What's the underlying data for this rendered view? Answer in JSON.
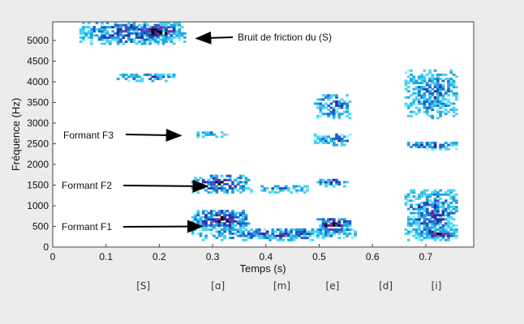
{
  "chart_data": {
    "type": "heatmap",
    "title": "",
    "xlabel": "Temps (s)",
    "ylabel": "Fréquence (Hz)",
    "xlim": [
      0,
      0.79
    ],
    "ylim": [
      0,
      5450
    ],
    "xticks": [
      "0",
      "0.1",
      "0.2",
      "0.3",
      "0.4",
      "0.5",
      "0.6",
      "0.7"
    ],
    "xtick_values": [
      0,
      0.1,
      0.2,
      0.3,
      0.4,
      0.5,
      0.6,
      0.7
    ],
    "yticks": [
      "0",
      "500",
      "1000",
      "1500",
      "2000",
      "2500",
      "3000",
      "3500",
      "4000",
      "4500",
      "5000"
    ],
    "ytick_values": [
      0,
      500,
      1000,
      1500,
      2000,
      2500,
      3000,
      3500,
      4000,
      4500,
      5000
    ],
    "grid": false,
    "colormap": [
      "#8cf0ff",
      "#46d2f0",
      "#1ea5e1",
      "#1e5fcd",
      "#2d2d9b",
      "#8c28b4",
      "#000000"
    ],
    "energy_regions": [
      {
        "t": [
          0.05,
          0.25
        ],
        "f": [
          4900,
          5450
        ],
        "level": 0.7
      },
      {
        "t": [
          0.15,
          0.24
        ],
        "f": [
          5000,
          5400
        ],
        "level": 1.0
      },
      {
        "t": [
          0.12,
          0.24
        ],
        "f": [
          4000,
          4200
        ],
        "level": 0.45
      },
      {
        "t": [
          0.27,
          0.33
        ],
        "f": [
          2650,
          2800
        ],
        "level": 0.35
      },
      {
        "t": [
          0.26,
          0.37
        ],
        "f": [
          1300,
          1750
        ],
        "level": 0.8
      },
      {
        "t": [
          0.26,
          0.37
        ],
        "f": [
          400,
          900
        ],
        "level": 0.9
      },
      {
        "t": [
          0.26,
          0.57
        ],
        "f": [
          150,
          450
        ],
        "level": 0.6
      },
      {
        "t": [
          0.37,
          0.48
        ],
        "f": [
          1300,
          1500
        ],
        "level": 0.3
      },
      {
        "t": [
          0.49,
          0.56
        ],
        "f": [
          3100,
          3700
        ],
        "level": 0.55
      },
      {
        "t": [
          0.49,
          0.56
        ],
        "f": [
          2450,
          2750
        ],
        "level": 0.7
      },
      {
        "t": [
          0.49,
          0.56
        ],
        "f": [
          1450,
          1650
        ],
        "level": 0.65
      },
      {
        "t": [
          0.49,
          0.56
        ],
        "f": [
          300,
          700
        ],
        "level": 0.9
      },
      {
        "t": [
          0.66,
          0.76
        ],
        "f": [
          3100,
          4300
        ],
        "level": 0.5
      },
      {
        "t": [
          0.66,
          0.76
        ],
        "f": [
          2350,
          2550
        ],
        "level": 0.6
      },
      {
        "t": [
          0.66,
          0.76
        ],
        "f": [
          150,
          1400
        ],
        "level": 0.6
      },
      {
        "t": [
          0.68,
          0.76
        ],
        "f": [
          200,
          400
        ],
        "level": 0.9
      }
    ],
    "annotations": [
      {
        "text": "Bruit de friction du (S)",
        "points_to": [
          0.27,
          5050
        ]
      },
      {
        "text": "Formant F3",
        "points_to": [
          0.24,
          2700
        ]
      },
      {
        "text": "Formant F2",
        "points_to": [
          0.29,
          1470
        ]
      },
      {
        "text": "Formant F1",
        "points_to": [
          0.28,
          500
        ]
      }
    ],
    "phonemes": [
      {
        "label": "[S]",
        "t": 0.17
      },
      {
        "label": "[ɑ]",
        "t": 0.31
      },
      {
        "label": "[m]",
        "t": 0.43
      },
      {
        "label": "[e]",
        "t": 0.525
      },
      {
        "label": "[d]",
        "t": 0.625
      },
      {
        "label": "[i]",
        "t": 0.72
      }
    ]
  }
}
